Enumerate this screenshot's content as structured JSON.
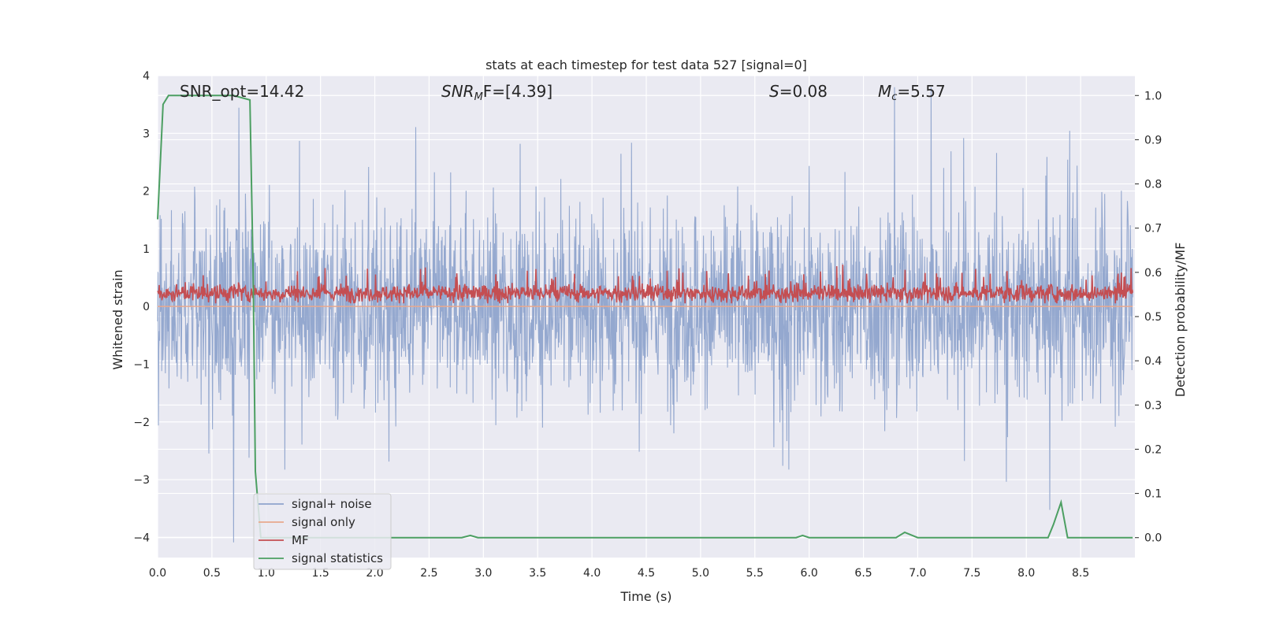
{
  "chart_data": {
    "type": "line",
    "title": "stats at each timestep for test data 527 [signal=0]",
    "xlabel": "Time (s)",
    "ylabel_left": "Whitened strain",
    "ylabel_right": "Detection probability/MF",
    "xlim": [
      0.0,
      9.0
    ],
    "ylim_left": [
      -4.35,
      4.0
    ],
    "ylim_right": [
      -0.045,
      1.045
    ],
    "xticks": [
      "0.0",
      "0.5",
      "1.0",
      "1.5",
      "2.0",
      "2.5",
      "3.0",
      "3.5",
      "4.0",
      "4.5",
      "5.0",
      "5.5",
      "6.0",
      "6.5",
      "7.0",
      "7.5",
      "8.0",
      "8.5"
    ],
    "yticks_left": [
      "4",
      "3",
      "2",
      "1",
      "0",
      "−1",
      "−2",
      "−3",
      "−4"
    ],
    "yticks_right": [
      "1.0",
      "0.9",
      "0.8",
      "0.7",
      "0.6",
      "0.5",
      "0.4",
      "0.3",
      "0.2",
      "0.1",
      "0.0"
    ],
    "grid": true,
    "legend_position": "lower-left",
    "annotations": {
      "snr_opt": "SNR_opt=14.42",
      "snr_mf_sym": "SNR",
      "snr_mf_sub": "M",
      "snr_mf_val": "F=[4.39]",
      "s_sym": "S",
      "s_val": "=0.08",
      "mc_sym": "M",
      "mc_sub": "c",
      "mc_val": "=5.57"
    },
    "series": [
      {
        "name": "signal+ noise",
        "color": "#8fa4cc",
        "axis": "left",
        "description_values": "whitened noise, approx. range −4 to 3.8, sampled densely"
      },
      {
        "name": "signal only",
        "color": "#e8a98e",
        "axis": "left",
        "values": "0"
      },
      {
        "name": "MF",
        "color": "#c44e52",
        "axis": "right",
        "range": [
          0.53,
          0.63
        ]
      },
      {
        "name": "signal statistics",
        "color": "#4c9f62",
        "axis": "right",
        "x": [
          0.0,
          0.05,
          0.1,
          0.2,
          0.3,
          0.5,
          0.7,
          0.85,
          0.88,
          0.9,
          0.95,
          1.0,
          2.8,
          2.88,
          2.95,
          3.0,
          5.88,
          5.94,
          6.0,
          6.8,
          6.88,
          7.0,
          8.2,
          8.25,
          8.32,
          8.38,
          8.45,
          8.98
        ],
        "y": [
          0.72,
          0.98,
          1.0,
          1.0,
          1.0,
          1.0,
          1.0,
          0.99,
          0.6,
          0.15,
          0.0,
          0.0,
          0.0,
          0.005,
          0.0,
          0.0,
          0.0,
          0.005,
          0.0,
          0.0,
          0.012,
          0.0,
          0.0,
          0.03,
          0.08,
          0.0,
          0.0,
          0.0
        ]
      }
    ],
    "legend": [
      "signal+ noise",
      "signal only",
      "MF",
      "signal statistics"
    ]
  }
}
